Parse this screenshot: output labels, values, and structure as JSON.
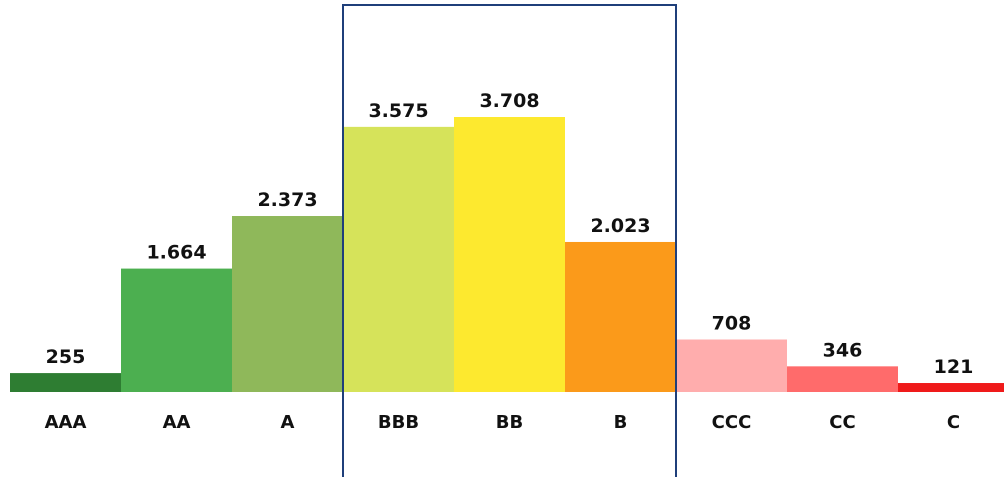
{
  "chart_data": {
    "type": "bar",
    "categories": [
      "AAA",
      "AA",
      "A",
      "BBB",
      "BB",
      "B",
      "CCC",
      "CC",
      "C"
    ],
    "values": [
      255,
      1664,
      2373,
      3575,
      3708,
      2023,
      708,
      346,
      121
    ],
    "value_labels": [
      "255",
      "1.664",
      "2.373",
      "3.575",
      "3.708",
      "2.023",
      "708",
      "346",
      "121"
    ],
    "colors": [
      "#2e7d32",
      "#4caf50",
      "#8fb85a",
      "#d6e35a",
      "#fde92f",
      "#fb9a1a",
      "#ffadad",
      "#ff6b6b",
      "#ef1a1a"
    ],
    "highlight_box": {
      "categories": [
        "BBB",
        "BB",
        "B"
      ],
      "color": "#1f3f7a"
    },
    "title": "",
    "xlabel": "",
    "ylabel": "",
    "ylim": [
      0,
      3708
    ],
    "grid": false,
    "legend": "none"
  }
}
